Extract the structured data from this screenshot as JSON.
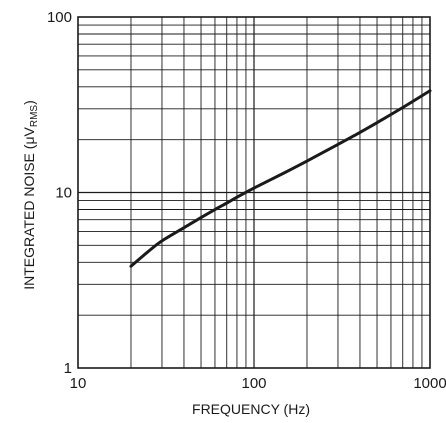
{
  "chart_data": {
    "type": "line",
    "title": "",
    "xlabel": "FREQUENCY (Hz)",
    "ylabel": {
      "main": "INTEGRATED NOISE (μV",
      "subscript": "RMS",
      "close": ")"
    },
    "xscale": "log",
    "yscale": "log",
    "xlim": [
      10,
      1000
    ],
    "ylim": [
      1,
      100
    ],
    "grid": true,
    "xticks": [
      {
        "value": 10,
        "label": "10"
      },
      {
        "value": 100,
        "label": "100"
      },
      {
        "value": 1000,
        "label": "1000"
      }
    ],
    "yticks": [
      {
        "value": 1,
        "label": "1"
      },
      {
        "value": 10,
        "label": "10"
      },
      {
        "value": 100,
        "label": "100"
      }
    ],
    "series": [
      {
        "x": [
          20,
          25,
          30,
          40,
          50,
          60,
          70,
          80,
          100,
          150,
          200,
          300,
          400,
          500,
          700,
          1000
        ],
        "y": [
          3.8,
          4.6,
          5.3,
          6.3,
          7.2,
          8.0,
          8.7,
          9.4,
          10.6,
          13.0,
          15.1,
          18.8,
          22.0,
          25.0,
          30.5,
          38.0
        ]
      }
    ],
    "colors": {
      "line": "#1a1a1a",
      "grid": "#1a1a1a",
      "text": "#1a1a1a"
    }
  }
}
